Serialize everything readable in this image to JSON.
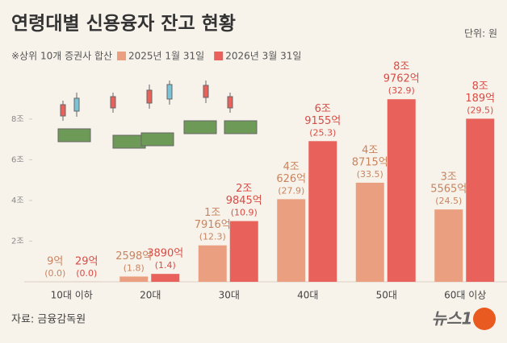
{
  "chart_data": {
    "type": "bar",
    "title": "연령대별 신용융자 잔고 현황",
    "unit_note": "단위: 원",
    "subtitle": "※상위 10개 증권사 합산",
    "source": "자료: 금융감독원",
    "logo": "뉴스1",
    "categories": [
      "10대 이하",
      "20대",
      "30대",
      "40대",
      "50대",
      "60대 이상"
    ],
    "series": [
      {
        "name": "2025년 1월 31일",
        "color": "#eaa080",
        "label_color": "#c9845f",
        "values": [
          0.0009,
          0.2598,
          1.7916,
          4.0626,
          4.8715,
          3.5565
        ],
        "value_labels": [
          [
            "9억"
          ],
          [
            "2598억"
          ],
          [
            "1조",
            "7916억"
          ],
          [
            "4조",
            "626억"
          ],
          [
            "4조",
            "8715억"
          ],
          [
            "3조",
            "5565억"
          ]
        ],
        "shares": [
          0.0,
          1.8,
          12.3,
          27.9,
          33.5,
          24.5
        ],
        "share_labels": [
          "(0.0)",
          "(1.8)",
          "(12.3)",
          "(27.9)",
          "(33.5)",
          "(24.5)"
        ]
      },
      {
        "name": "2026년 3월 31일",
        "color": "#e8625b",
        "label_color": "#d94c45",
        "values": [
          0.0029,
          0.389,
          2.9845,
          6.9155,
          8.9762,
          8.0189
        ],
        "value_labels": [
          [
            "29억"
          ],
          [
            "3890억"
          ],
          [
            "2조",
            "9845억"
          ],
          [
            "6조",
            "9155억"
          ],
          [
            "8조",
            "9762억"
          ],
          [
            "8조",
            "189억"
          ]
        ],
        "shares": [
          0.0,
          1.4,
          10.9,
          25.3,
          32.9,
          29.5
        ],
        "share_labels": [
          "(0.0)",
          "(1.4)",
          "(10.9)",
          "(25.3)",
          "(32.9)",
          "(29.5)"
        ]
      }
    ],
    "ylim": [
      0,
      9.5
    ],
    "yticks": [
      {
        "value": 2,
        "label": "2조"
      },
      {
        "value": 4,
        "label": "4조"
      },
      {
        "value": 6,
        "label": "6조"
      },
      {
        "value": 8,
        "label": "8조"
      }
    ],
    "grid": false
  }
}
